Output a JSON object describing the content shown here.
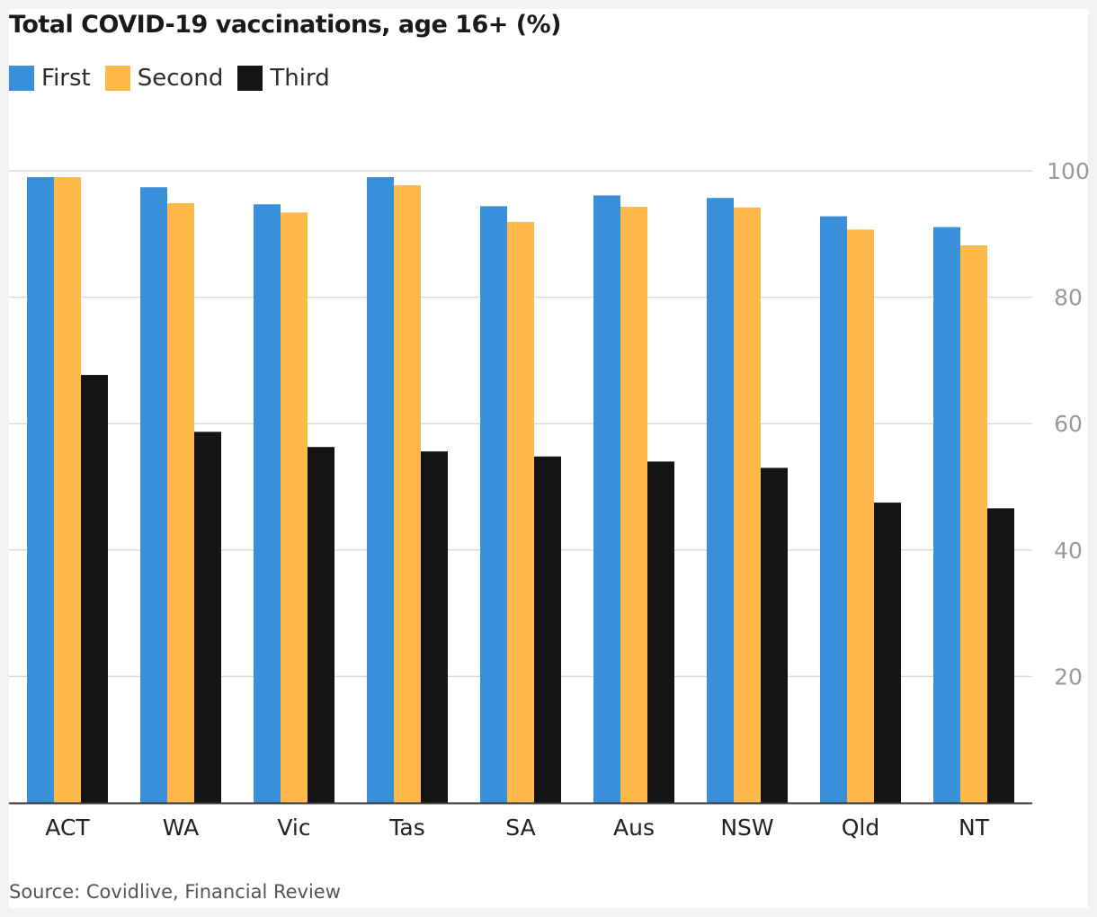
{
  "chart_data": {
    "type": "bar",
    "title": "Total COVID-19 vaccinations, age 16+ (%)",
    "source": "Source: Covidlive, Financial Review",
    "categories": [
      "ACT",
      "WA",
      "Vic",
      "Tas",
      "SA",
      "Aus",
      "NSW",
      "Qld",
      "NT"
    ],
    "series": [
      {
        "name": "First",
        "color": "#3a8fdb",
        "values": [
          99.0,
          97.4,
          94.7,
          99.0,
          94.4,
          96.1,
          95.7,
          92.8,
          91.1
        ]
      },
      {
        "name": "Second",
        "color": "#ffb84a",
        "values": [
          99.0,
          94.9,
          93.4,
          97.7,
          91.9,
          94.3,
          94.2,
          90.7,
          88.2
        ]
      },
      {
        "name": "Third",
        "color": "#141414",
        "values": [
          67.7,
          58.7,
          56.3,
          55.6,
          54.8,
          54.0,
          53.0,
          47.5,
          46.6
        ]
      }
    ],
    "yticks": [
      20,
      40,
      60,
      80,
      100
    ],
    "ylim": [
      0,
      100
    ],
    "grid": true,
    "legend": "top-left",
    "xlabel": "",
    "ylabel": ""
  }
}
